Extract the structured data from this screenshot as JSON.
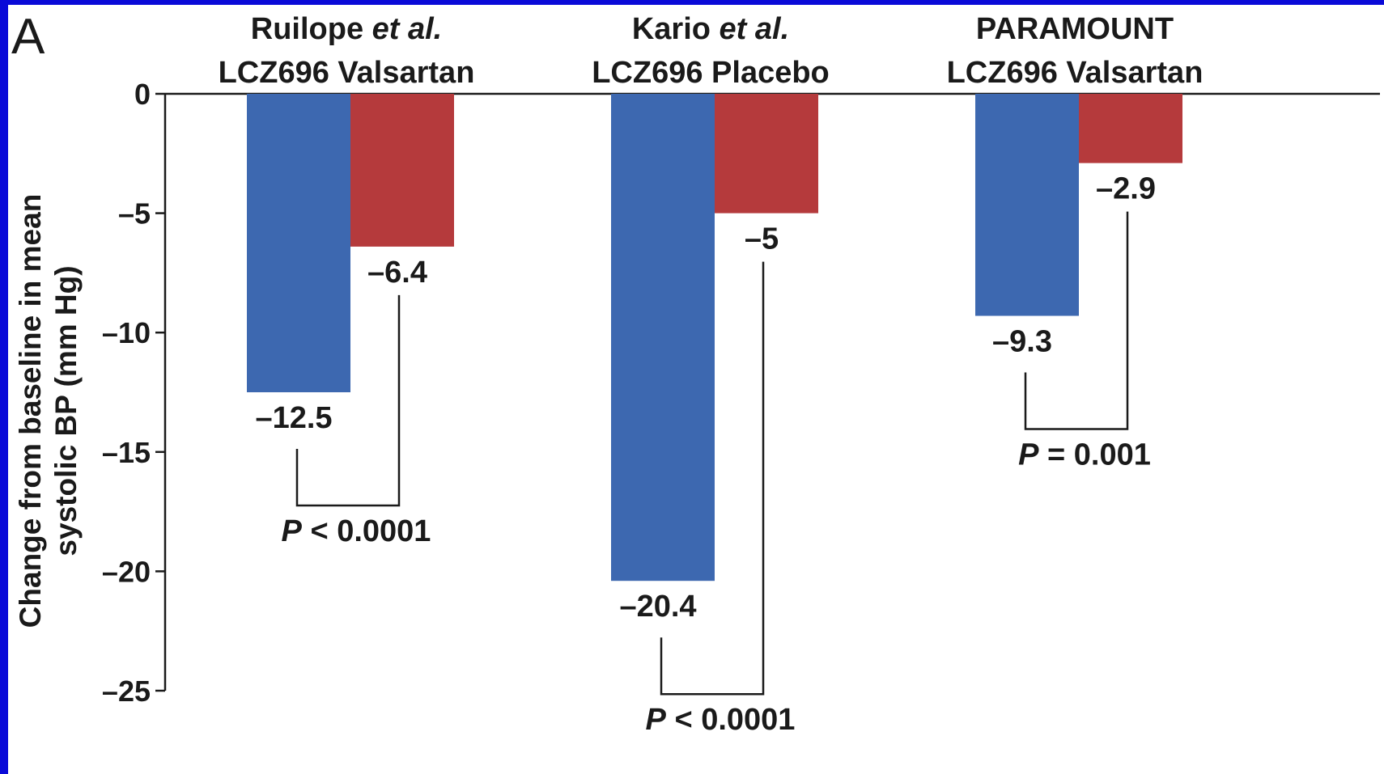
{
  "panel_letter": "A",
  "chart_data": {
    "type": "bar",
    "ylabel_lines": [
      "Change from baseline in mean",
      "systolic BP (mm Hg)"
    ],
    "ylim": [
      -25,
      0
    ],
    "yticks": [
      0,
      -5,
      -10,
      -15,
      -20,
      -25
    ],
    "ytick_labels": [
      "0",
      "–5",
      "–10",
      "–15",
      "–20",
      "–25"
    ],
    "groups": [
      {
        "title_parts": [
          {
            "text": "Ruilope ",
            "italic": false
          },
          {
            "text": "et al.",
            "italic": true
          }
        ],
        "subtitle": "LCZ696 Valsartan",
        "bars": [
          {
            "value": -12.5,
            "label": "–12.5",
            "color": "#3d68b0"
          },
          {
            "value": -6.4,
            "label": "–6.4",
            "color": "#b53a3c"
          }
        ],
        "p_value": {
          "symbol": "P",
          "text": " < 0.0001"
        }
      },
      {
        "title_parts": [
          {
            "text": "Kario ",
            "italic": false
          },
          {
            "text": "et al.",
            "italic": true
          }
        ],
        "subtitle": "LCZ696 Placebo",
        "bars": [
          {
            "value": -20.4,
            "label": "–20.4",
            "color": "#3d68b0"
          },
          {
            "value": -5,
            "label": "–5",
            "color": "#b53a3c"
          }
        ],
        "p_value": {
          "symbol": "P",
          "text": " < 0.0001"
        }
      },
      {
        "title_parts": [
          {
            "text": "PARAMOUNT",
            "italic": false
          }
        ],
        "subtitle": "LCZ696 Valsartan",
        "bars": [
          {
            "value": -9.3,
            "label": "–9.3",
            "color": "#3d68b0"
          },
          {
            "value": -2.9,
            "label": "–2.9",
            "color": "#b53a3c"
          }
        ],
        "p_value": {
          "symbol": "P",
          "text": " = 0.001"
        }
      }
    ]
  }
}
